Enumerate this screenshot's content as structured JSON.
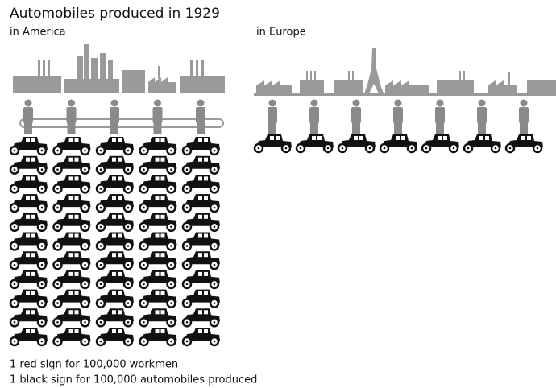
{
  "chart_data": {
    "type": "pictogram",
    "title": "Automobiles produced in 1929",
    "categories": [
      "in America",
      "in Europe"
    ],
    "series": [
      {
        "color": "#8a8a8a",
        "values": [
          5,
          7
        ]
      },
      {
        "color": "#111111",
        "values": [
          55,
          7
        ]
      }
    ],
    "legend": [
      "1 red sign for 100,000 workmen",
      "1 black sign for 100,000 automobiles produced"
    ]
  }
}
